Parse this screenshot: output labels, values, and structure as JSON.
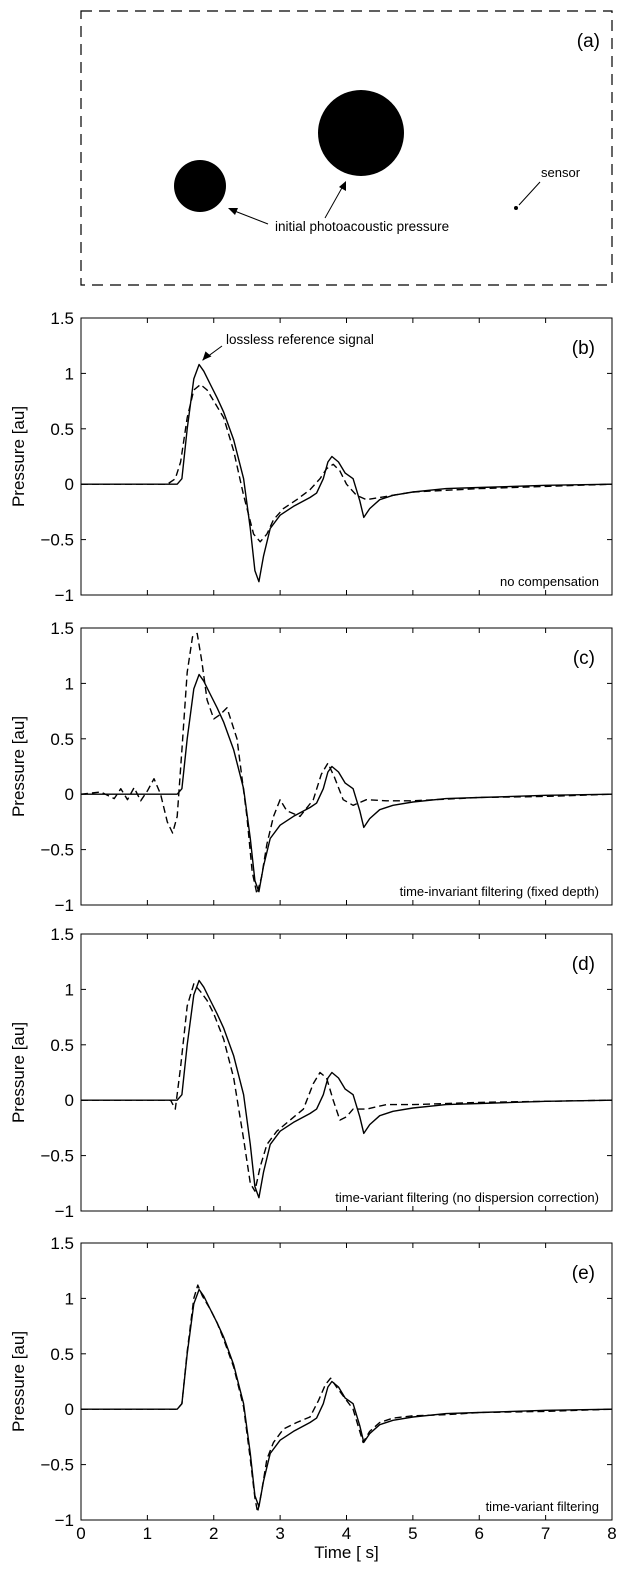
{
  "schematic": {
    "label": "(a)",
    "annotation_pressure": "initial photoacoustic pressure",
    "annotation_sensor": "sensor"
  },
  "chart_data": [
    {
      "type": "line",
      "panel": "(b)",
      "annotation": "no compensation",
      "callout": "lossless reference signal",
      "ylabel": "Pressure [au]",
      "xlim": [
        0,
        8
      ],
      "ylim": [
        -1,
        1.5
      ],
      "yticks": [
        "1.5",
        "1",
        "0.5",
        "0",
        "−0.5",
        "−1"
      ],
      "series": [
        {
          "style": "solid",
          "x": [
            0,
            1.45,
            1.52,
            1.6,
            1.7,
            1.78,
            1.85,
            1.95,
            2.05,
            2.15,
            2.3,
            2.45,
            2.55,
            2.62,
            2.68,
            2.75,
            2.85,
            3.0,
            3.2,
            3.45,
            3.55,
            3.65,
            3.72,
            3.78,
            3.88,
            3.98,
            4.1,
            4.2,
            4.26,
            4.35,
            4.5,
            4.7,
            5.0,
            5.5,
            6.0,
            7.0,
            8.0
          ],
          "y": [
            0,
            0,
            0.05,
            0.5,
            0.95,
            1.08,
            1.02,
            0.9,
            0.78,
            0.65,
            0.4,
            0.05,
            -0.4,
            -0.78,
            -0.88,
            -0.65,
            -0.4,
            -0.28,
            -0.2,
            -0.12,
            -0.08,
            0.05,
            0.2,
            0.25,
            0.2,
            0.1,
            0.05,
            -0.15,
            -0.3,
            -0.22,
            -0.14,
            -0.1,
            -0.07,
            -0.04,
            -0.03,
            -0.01,
            0
          ]
        },
        {
          "style": "dashed",
          "x": [
            0,
            1.3,
            1.42,
            1.5,
            1.6,
            1.7,
            1.8,
            1.9,
            2.0,
            2.15,
            2.3,
            2.45,
            2.6,
            2.7,
            2.8,
            2.9,
            3.05,
            3.25,
            3.45,
            3.6,
            3.7,
            3.8,
            3.9,
            4.0,
            4.15,
            4.3,
            4.6,
            5.0,
            6.0,
            7.0,
            8.0
          ],
          "y": [
            0,
            0,
            0.05,
            0.2,
            0.6,
            0.85,
            0.9,
            0.85,
            0.75,
            0.6,
            0.3,
            -0.1,
            -0.45,
            -0.52,
            -0.45,
            -0.32,
            -0.22,
            -0.14,
            -0.05,
            0.05,
            0.14,
            0.18,
            0.12,
            0.0,
            -0.1,
            -0.14,
            -0.11,
            -0.07,
            -0.04,
            -0.02,
            0
          ]
        }
      ]
    },
    {
      "type": "line",
      "panel": "(c)",
      "annotation": "time-invariant filtering (fixed depth)",
      "ylabel": "Pressure [au]",
      "xlim": [
        0,
        8
      ],
      "ylim": [
        -1,
        1.5
      ],
      "yticks": [
        "1.5",
        "1",
        "0.5",
        "0",
        "−0.5",
        "−1"
      ],
      "series": [
        {
          "style": "solid",
          "x": [
            0,
            1.45,
            1.52,
            1.6,
            1.7,
            1.78,
            1.85,
            1.95,
            2.05,
            2.15,
            2.3,
            2.45,
            2.55,
            2.62,
            2.68,
            2.75,
            2.85,
            3.0,
            3.2,
            3.45,
            3.55,
            3.65,
            3.72,
            3.78,
            3.88,
            3.98,
            4.1,
            4.2,
            4.26,
            4.35,
            4.5,
            4.7,
            5.0,
            5.5,
            6.0,
            7.0,
            8.0
          ],
          "y": [
            0,
            0,
            0.05,
            0.5,
            0.95,
            1.08,
            1.02,
            0.9,
            0.78,
            0.65,
            0.4,
            0.05,
            -0.4,
            -0.78,
            -0.88,
            -0.65,
            -0.4,
            -0.28,
            -0.2,
            -0.12,
            -0.08,
            0.05,
            0.2,
            0.25,
            0.2,
            0.1,
            0.05,
            -0.15,
            -0.3,
            -0.22,
            -0.14,
            -0.1,
            -0.07,
            -0.04,
            -0.03,
            -0.01,
            0
          ]
        },
        {
          "style": "dashed",
          "x": [
            0,
            0.3,
            0.5,
            0.6,
            0.7,
            0.8,
            0.9,
            1.0,
            1.1,
            1.2,
            1.3,
            1.38,
            1.45,
            1.52,
            1.6,
            1.68,
            1.75,
            1.82,
            1.9,
            2.0,
            2.1,
            2.2,
            2.35,
            2.5,
            2.58,
            2.65,
            2.72,
            2.8,
            2.9,
            3.0,
            3.1,
            3.3,
            3.5,
            3.62,
            3.72,
            3.82,
            3.95,
            4.1,
            4.3,
            4.6,
            5.0,
            6.0,
            7.0,
            8.0
          ],
          "y": [
            0,
            0.02,
            -0.04,
            0.05,
            -0.05,
            0.06,
            -0.06,
            0.03,
            0.14,
            0.0,
            -0.25,
            -0.35,
            -0.2,
            0.4,
            1.1,
            1.42,
            1.45,
            1.2,
            0.85,
            0.68,
            0.72,
            0.78,
            0.5,
            -0.2,
            -0.7,
            -0.9,
            -0.75,
            -0.45,
            -0.2,
            -0.05,
            -0.15,
            -0.2,
            -0.05,
            0.18,
            0.28,
            0.15,
            -0.05,
            -0.1,
            -0.05,
            -0.06,
            -0.06,
            -0.03,
            -0.02,
            0
          ]
        }
      ]
    },
    {
      "type": "line",
      "panel": "(d)",
      "annotation": "time-variant filtering (no dispersion correction)",
      "ylabel": "Pressure [au]",
      "xlim": [
        0,
        8
      ],
      "ylim": [
        -1,
        1.5
      ],
      "yticks": [
        "1.5",
        "1",
        "0.5",
        "0",
        "−0.5",
        "−1"
      ],
      "series": [
        {
          "style": "solid",
          "x": [
            0,
            1.45,
            1.52,
            1.6,
            1.7,
            1.78,
            1.85,
            1.95,
            2.05,
            2.15,
            2.3,
            2.45,
            2.55,
            2.62,
            2.68,
            2.75,
            2.85,
            3.0,
            3.2,
            3.45,
            3.55,
            3.65,
            3.72,
            3.78,
            3.88,
            3.98,
            4.1,
            4.2,
            4.26,
            4.35,
            4.5,
            4.7,
            5.0,
            5.5,
            6.0,
            7.0,
            8.0
          ],
          "y": [
            0,
            0,
            0.05,
            0.5,
            0.95,
            1.08,
            1.02,
            0.9,
            0.78,
            0.65,
            0.4,
            0.05,
            -0.4,
            -0.78,
            -0.88,
            -0.65,
            -0.4,
            -0.28,
            -0.2,
            -0.12,
            -0.08,
            0.05,
            0.2,
            0.25,
            0.2,
            0.1,
            0.05,
            -0.15,
            -0.3,
            -0.22,
            -0.14,
            -0.1,
            -0.07,
            -0.04,
            -0.03,
            -0.01,
            0
          ]
        },
        {
          "style": "dashed",
          "x": [
            0,
            1.35,
            1.42,
            1.5,
            1.6,
            1.7,
            1.8,
            1.9,
            2.0,
            2.15,
            2.3,
            2.45,
            2.55,
            2.62,
            2.7,
            2.8,
            2.95,
            3.15,
            3.35,
            3.5,
            3.6,
            3.7,
            3.8,
            3.9,
            4.0,
            4.1,
            4.3,
            4.6,
            5.0,
            6.0,
            7.0,
            8.0
          ],
          "y": [
            0,
            0,
            -0.08,
            0.3,
            0.85,
            1.05,
            0.98,
            0.9,
            0.78,
            0.55,
            0.2,
            -0.35,
            -0.75,
            -0.82,
            -0.6,
            -0.4,
            -0.28,
            -0.18,
            -0.08,
            0.15,
            0.25,
            0.2,
            0.0,
            -0.18,
            -0.15,
            -0.08,
            -0.08,
            -0.04,
            -0.04,
            -0.02,
            -0.01,
            0
          ]
        }
      ]
    },
    {
      "type": "line",
      "panel": "(e)",
      "annotation": "time-variant filtering",
      "ylabel": "Pressure [au]",
      "xlabel": "Time [  s]",
      "xlim": [
        0,
        8
      ],
      "ylim": [
        -1,
        1.5
      ],
      "yticks": [
        "1.5",
        "1",
        "0.5",
        "0",
        "−0.5",
        "−1"
      ],
      "xticks": [
        "0",
        "1",
        "2",
        "3",
        "4",
        "5",
        "6",
        "7",
        "8"
      ],
      "series": [
        {
          "style": "solid",
          "x": [
            0,
            1.45,
            1.52,
            1.6,
            1.7,
            1.78,
            1.85,
            1.95,
            2.05,
            2.15,
            2.3,
            2.45,
            2.55,
            2.62,
            2.68,
            2.75,
            2.85,
            3.0,
            3.2,
            3.45,
            3.55,
            3.65,
            3.72,
            3.78,
            3.88,
            3.98,
            4.1,
            4.2,
            4.26,
            4.35,
            4.5,
            4.7,
            5.0,
            5.5,
            6.0,
            7.0,
            8.0
          ],
          "y": [
            0,
            0,
            0.05,
            0.5,
            0.95,
            1.08,
            1.02,
            0.9,
            0.78,
            0.65,
            0.4,
            0.05,
            -0.4,
            -0.78,
            -0.88,
            -0.65,
            -0.4,
            -0.28,
            -0.2,
            -0.12,
            -0.08,
            0.05,
            0.2,
            0.25,
            0.2,
            0.1,
            0.05,
            -0.15,
            -0.3,
            -0.22,
            -0.14,
            -0.1,
            -0.07,
            -0.04,
            -0.03,
            -0.01,
            0
          ]
        },
        {
          "style": "dashed",
          "x": [
            0,
            1.45,
            1.52,
            1.6,
            1.7,
            1.76,
            1.83,
            1.95,
            2.05,
            2.15,
            2.3,
            2.45,
            2.55,
            2.62,
            2.66,
            2.72,
            2.8,
            2.9,
            3.05,
            3.25,
            3.45,
            3.58,
            3.68,
            3.76,
            3.85,
            3.95,
            4.1,
            4.2,
            4.25,
            4.35,
            4.5,
            4.7,
            5.0,
            5.5,
            6.0,
            7.0,
            8.0
          ],
          "y": [
            0,
            0,
            0.05,
            0.52,
            1.0,
            1.12,
            1.02,
            0.9,
            0.78,
            0.63,
            0.38,
            0.02,
            -0.45,
            -0.8,
            -0.93,
            -0.75,
            -0.45,
            -0.3,
            -0.18,
            -0.12,
            -0.07,
            0.08,
            0.22,
            0.28,
            0.2,
            0.12,
            0.0,
            -0.2,
            -0.3,
            -0.2,
            -0.12,
            -0.08,
            -0.06,
            -0.05,
            -0.03,
            -0.02,
            0
          ]
        }
      ]
    }
  ]
}
